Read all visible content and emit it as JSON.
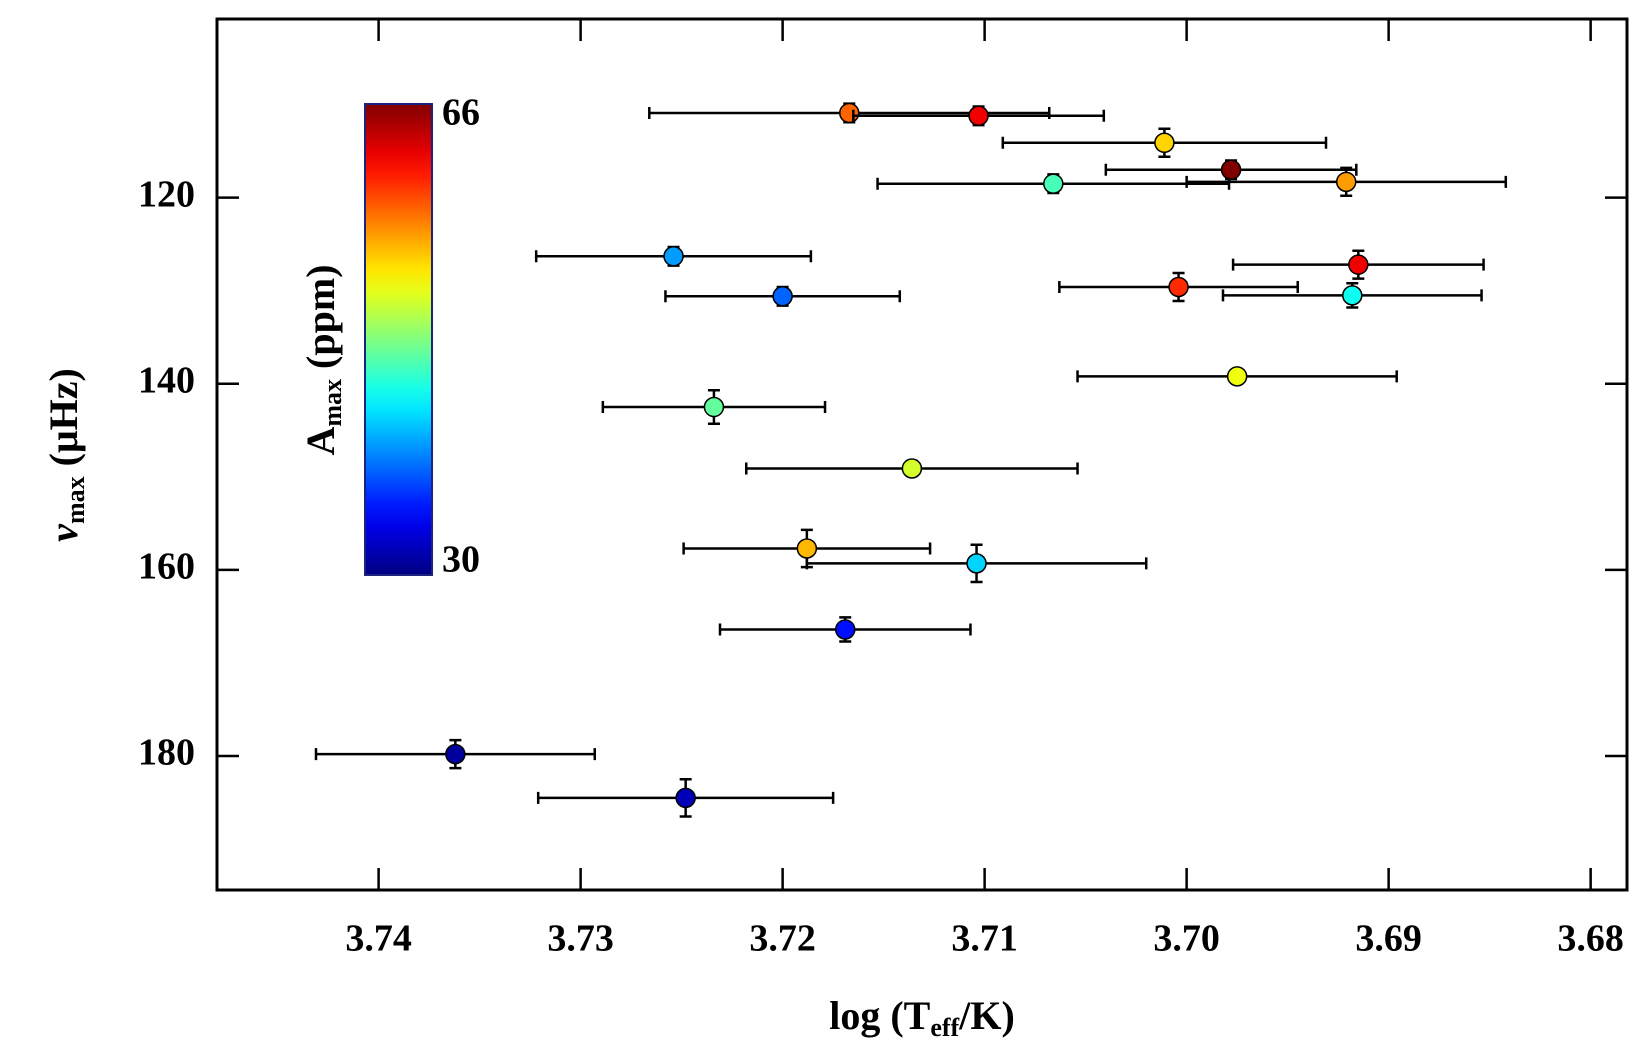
{
  "chart_data": {
    "type": "scatter",
    "xlabel": [
      "log (T",
      "eff",
      "/K)"
    ],
    "ylabel": [
      "ν",
      "max",
      " (μHz)"
    ],
    "xlim": [
      3.748,
      3.6782
    ],
    "ylim": [
      100.8,
      194.4
    ],
    "xticks": [
      3.74,
      3.73,
      3.72,
      3.71,
      {
        "value": 3.7,
        "label": "3.70"
      },
      3.69,
      3.68
    ],
    "yticks": [
      120,
      140,
      160,
      180
    ],
    "colorbar": {
      "label": [
        "A",
        "max",
        " (ppm)"
      ],
      "clim": [
        30,
        66
      ],
      "colormap": "jet"
    },
    "series": [
      {
        "x": [
          3.7167,
          3.7103,
          3.7011,
          3.6978,
          3.7066,
          3.6921,
          3.7254,
          3.6915,
          3.7004,
          3.72,
          3.6918,
          3.6975,
          3.7234,
          3.7136,
          3.7188,
          3.7104,
          3.7169,
          3.7362,
          3.7248
        ],
        "y": [
          110.9,
          111.2,
          114.1,
          117.0,
          118.5,
          118.3,
          126.3,
          127.2,
          129.6,
          130.6,
          130.5,
          139.2,
          142.5,
          149.1,
          157.7,
          159.3,
          166.4,
          179.8,
          184.5
        ],
        "x_err": [
          0.0099,
          0.0062,
          0.008,
          0.0062,
          0.0087,
          0.0079,
          0.0068,
          0.0062,
          0.0059,
          0.0058,
          0.0064,
          0.0079,
          0.0055,
          0.0082,
          0.0061,
          0.0084,
          0.0062,
          0.0069,
          0.0073
        ],
        "y_err": [
          1,
          1,
          1.5,
          1,
          1,
          1.5,
          1,
          1.5,
          1.5,
          1,
          1.3,
          0.5,
          1.8,
          0.8,
          2,
          2,
          1.3,
          1.5,
          2
        ],
        "amax": [
          58,
          62,
          54,
          66,
          46,
          56,
          40,
          62,
          60,
          38,
          44,
          52,
          47,
          51,
          55,
          42,
          35,
          31,
          32
        ]
      }
    ]
  }
}
